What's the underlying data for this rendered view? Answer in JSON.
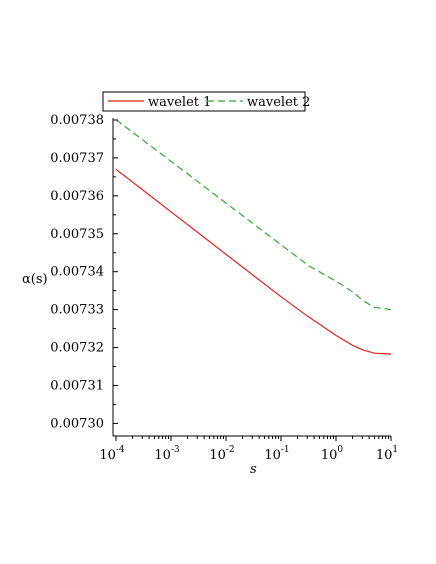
{
  "chart_data": {
    "type": "line",
    "xscale": "log",
    "xlabel": "s",
    "ylabel": "α(s)",
    "xlim": [
      0.0001,
      10
    ],
    "ylim": [
      0.007298,
      0.00738
    ],
    "x_ticks": [
      {
        "base": "10",
        "exp": "-4"
      },
      {
        "base": "10",
        "exp": "-3"
      },
      {
        "base": "10",
        "exp": "-2"
      },
      {
        "base": "10",
        "exp": "-1"
      },
      {
        "base": "10",
        "exp": "0"
      },
      {
        "base": "10",
        "exp": "1"
      }
    ],
    "y_ticks": [
      "0.00730",
      "0.00731",
      "0.00732",
      "0.00733",
      "0.00734",
      "0.00735",
      "0.00736",
      "0.00737",
      "0.00738"
    ],
    "legend_position": "top",
    "series": [
      {
        "name": "wavelet 1",
        "color": "#e3201b",
        "dash": "solid",
        "x": [
          0.0001,
          0.000316,
          0.001,
          0.00316,
          0.01,
          0.0316,
          0.1,
          0.316,
          1,
          2,
          3.16,
          5,
          10
        ],
        "y": [
          0.007367,
          0.0073614,
          0.0073558,
          0.0073502,
          0.0073446,
          0.007339,
          0.0073334,
          0.0073281,
          0.0073232,
          0.0073206,
          0.0073193,
          0.0073185,
          0.0073183
        ]
      },
      {
        "name": "wavelet 2",
        "color": "#33aa33",
        "dash": "dashed",
        "x": [
          0.0001,
          0.000316,
          0.001,
          0.00316,
          0.01,
          0.0316,
          0.1,
          0.316,
          1,
          2,
          3.16,
          5,
          10
        ],
        "y": [
          0.0073801,
          0.0073746,
          0.0073691,
          0.0073636,
          0.0073581,
          0.0073526,
          0.0073471,
          0.0073416,
          0.0073375,
          0.0073347,
          0.0073323,
          0.0073306,
          0.00733
        ]
      }
    ]
  }
}
